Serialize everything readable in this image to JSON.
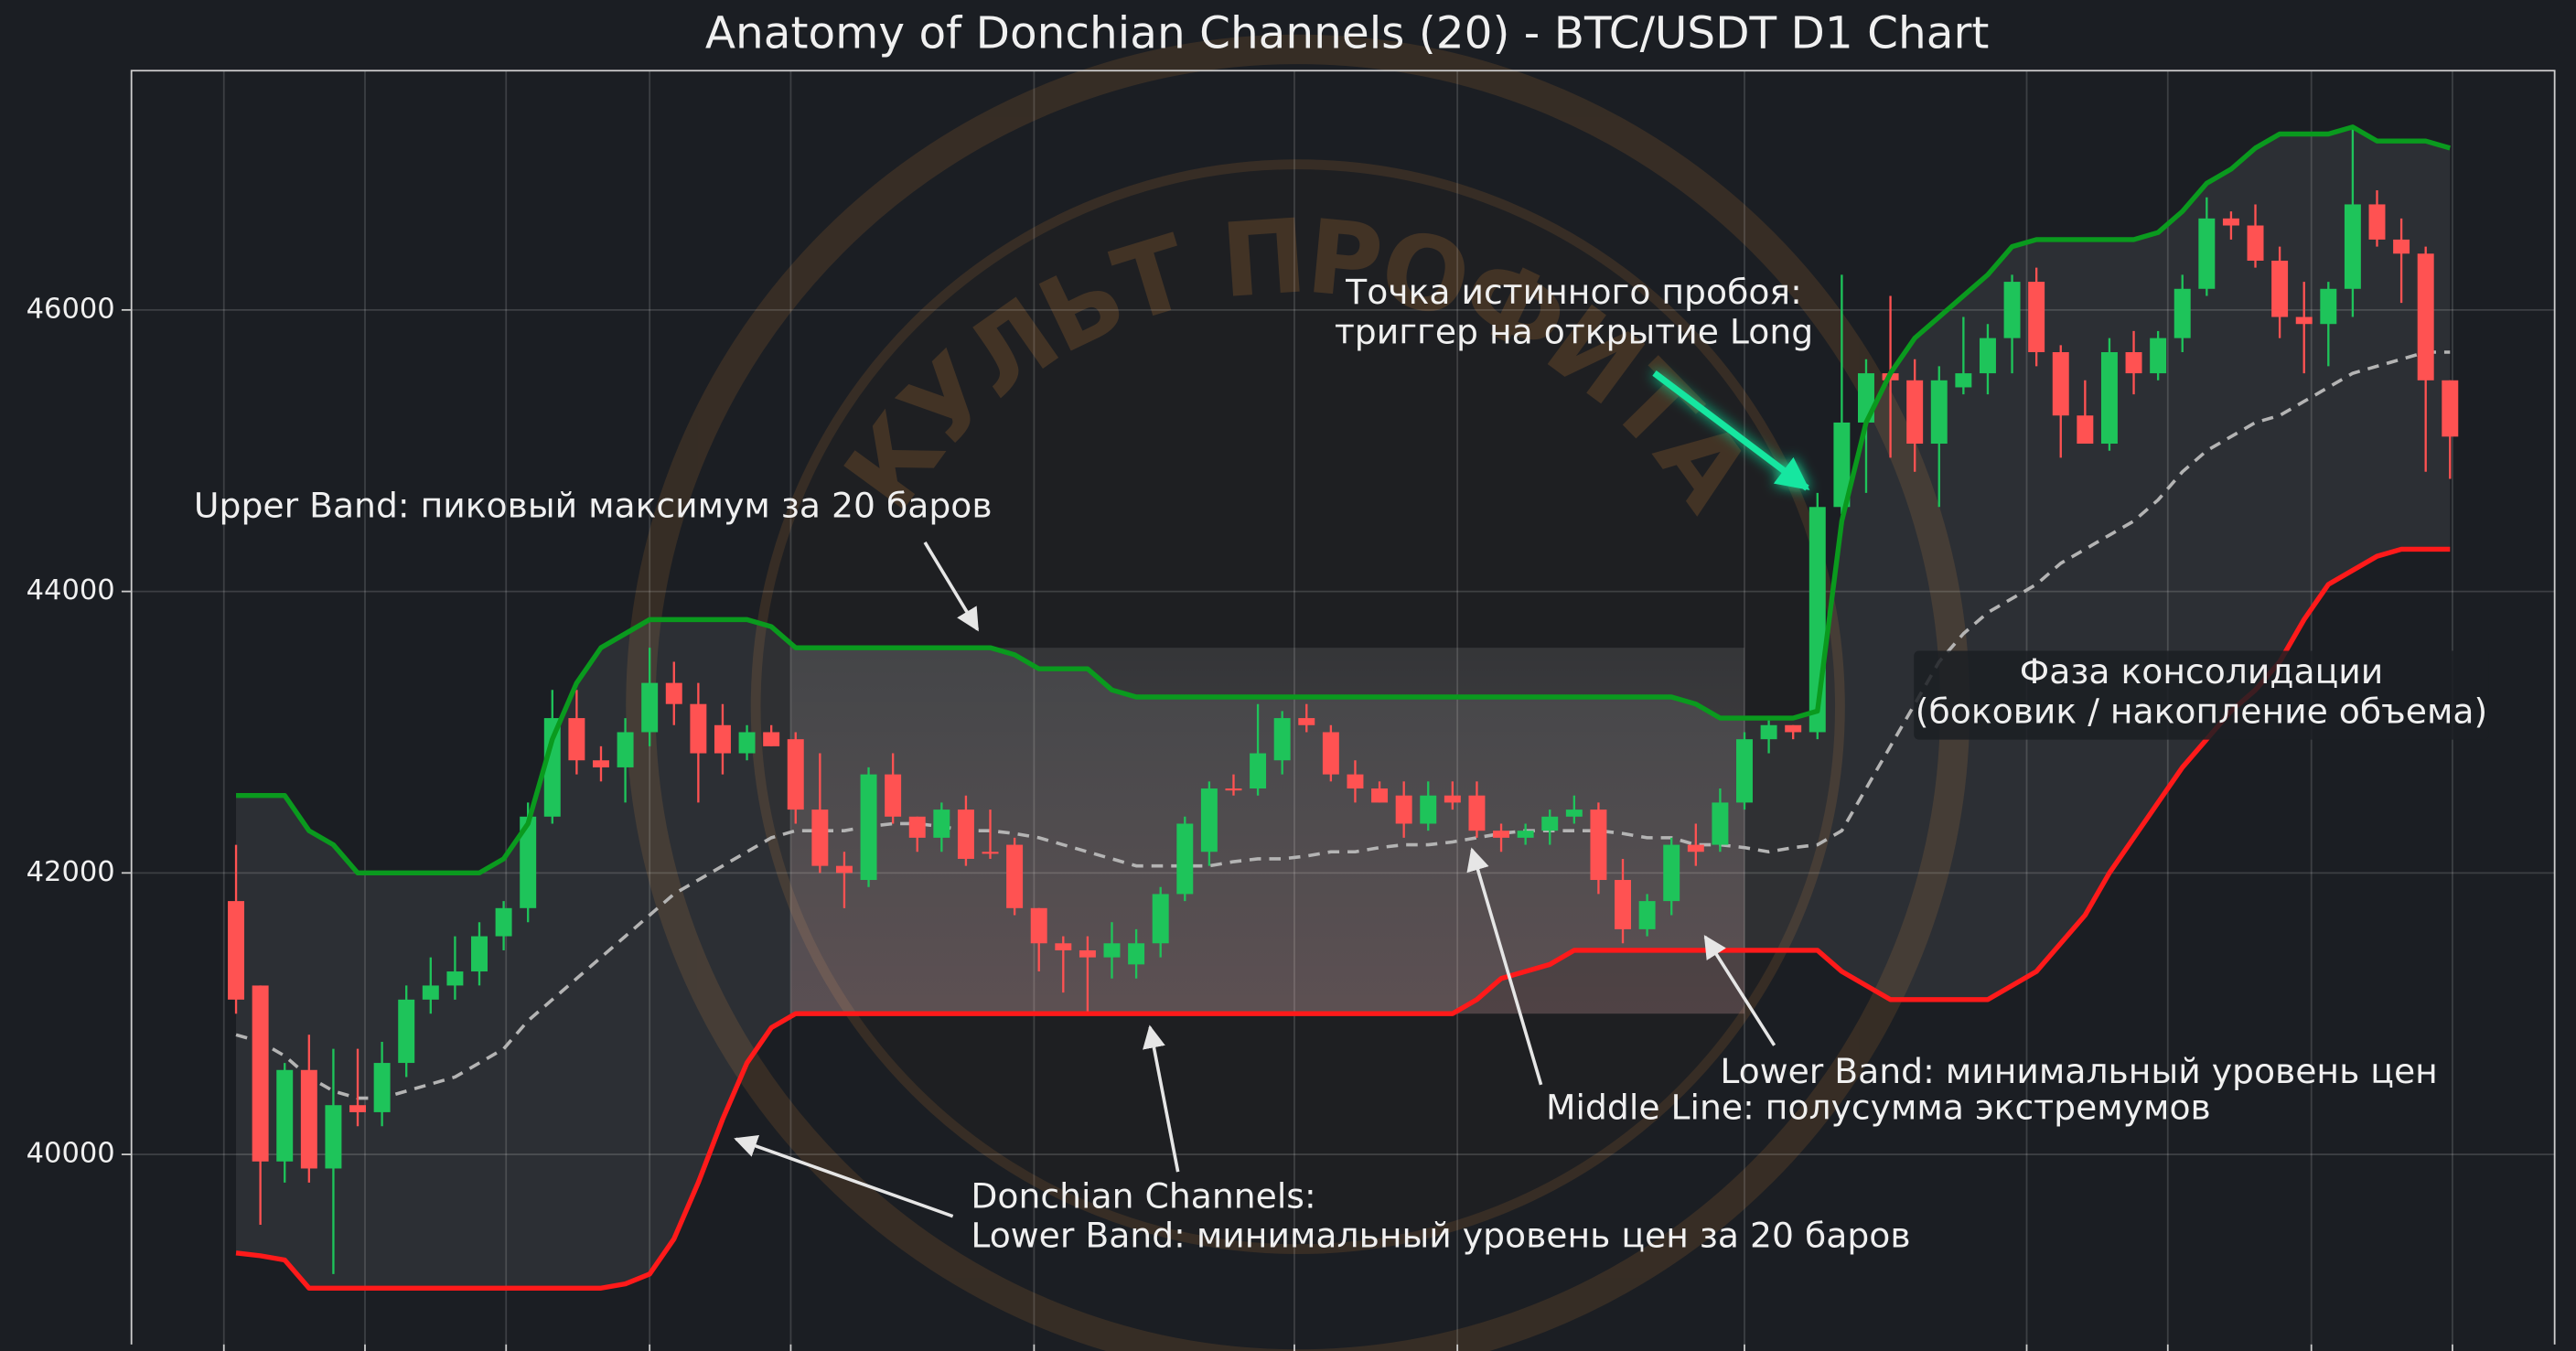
{
  "chart_data": {
    "type": "candlestick",
    "title": "Anatomy of Donchian Channels (20) - BTC/USDT D1 Chart",
    "watermark": "КУЛЬТ ПРОФИТА",
    "ylim": [
      38650,
      47700
    ],
    "yticks": [
      40000,
      42000,
      44000,
      46000
    ],
    "xlim": [
      -4.3,
      95.3
    ],
    "xticks": [
      -0.5,
      5.3,
      11.1,
      17,
      22.8,
      32.8,
      43.5,
      50.2,
      62,
      73.6,
      79.4,
      85.3,
      91.1
    ],
    "grid": true,
    "up_color": "#1ec45a",
    "down_color": "#ff5252",
    "open": [
      41800,
      41200,
      39950,
      40600,
      39900,
      40350,
      40300,
      40650,
      41100,
      41200,
      41300,
      41550,
      41750,
      42400,
      43100,
      42800,
      42750,
      43000,
      43350,
      43200,
      43050,
      42850,
      43000,
      42950,
      42450,
      42050,
      41950,
      42700,
      42400,
      42250,
      42450,
      42150,
      42200,
      41750,
      41500,
      41450,
      41400,
      41350,
      41500,
      41850,
      42150,
      42600,
      42600,
      42800,
      43100,
      43000,
      42700,
      42600,
      42550,
      42350,
      42550,
      42550,
      42300,
      42250,
      42300,
      42400,
      42450,
      41950,
      41600,
      41800,
      42200,
      42200,
      42500,
      42950,
      43050,
      43000,
      44600,
      45200,
      45550,
      45500,
      45050,
      45450,
      45550,
      45800,
      46200,
      45700,
      45250,
      45050,
      45700,
      45550,
      45800,
      46150,
      46650,
      46600,
      46350,
      45950,
      45900,
      46150,
      46750,
      46500,
      46400,
      45500
    ],
    "high": [
      42200,
      41200,
      40650,
      40850,
      40750,
      40750,
      40800,
      41200,
      41400,
      41550,
      41650,
      41800,
      42500,
      43300,
      43300,
      42900,
      43100,
      43600,
      43500,
      43350,
      43200,
      43050,
      43050,
      43000,
      42850,
      42150,
      42750,
      42850,
      42400,
      42500,
      42550,
      42450,
      42250,
      41750,
      41550,
      41550,
      41650,
      41600,
      41900,
      42400,
      42650,
      42700,
      43200,
      43150,
      43200,
      43050,
      42800,
      42650,
      42650,
      42650,
      42650,
      42650,
      42350,
      42350,
      42450,
      42550,
      42500,
      42100,
      41850,
      42250,
      42350,
      42600,
      43000,
      43100,
      43050,
      44700,
      46250,
      45650,
      46100,
      45650,
      45600,
      45950,
      45900,
      46250,
      46300,
      45750,
      45500,
      45800,
      45850,
      45850,
      46250,
      46800,
      46700,
      46750,
      46450,
      46200,
      46200,
      47300,
      46850,
      46650,
      46450,
      45500
    ],
    "low": [
      41000,
      39500,
      39800,
      39800,
      39150,
      40200,
      40200,
      40550,
      41000,
      41100,
      41200,
      41450,
      41650,
      42350,
      42700,
      42650,
      42500,
      42900,
      43050,
      42500,
      42700,
      42800,
      42900,
      42350,
      42000,
      41750,
      41900,
      42350,
      42150,
      42150,
      42050,
      42100,
      41700,
      41300,
      41150,
      41000,
      41250,
      41250,
      41400,
      41800,
      42050,
      42550,
      42550,
      42700,
      43000,
      42650,
      42500,
      42500,
      42250,
      42300,
      42450,
      42250,
      42150,
      42200,
      42200,
      42350,
      41850,
      41500,
      41550,
      41700,
      42050,
      42150,
      42450,
      42850,
      42950,
      42950,
      44550,
      44700,
      44950,
      44850,
      44600,
      45400,
      45400,
      45550,
      45600,
      44950,
      45050,
      45000,
      45400,
      45500,
      45700,
      46100,
      46500,
      46300,
      45800,
      45550,
      45600,
      45950,
      46450,
      46050,
      44850,
      44800
    ],
    "close": [
      41100,
      39950,
      40600,
      39900,
      40350,
      40300,
      40650,
      41100,
      41200,
      41300,
      41550,
      41750,
      42400,
      43100,
      42800,
      42750,
      43000,
      43350,
      43200,
      42850,
      42850,
      43000,
      42900,
      42450,
      42050,
      42000,
      42700,
      42400,
      42250,
      42450,
      42100,
      42150,
      41750,
      41500,
      41450,
      41400,
      41500,
      41500,
      41850,
      42350,
      42600,
      42600,
      42850,
      43100,
      43050,
      42700,
      42600,
      42500,
      42350,
      42550,
      42500,
      42300,
      42250,
      42300,
      42400,
      42450,
      41950,
      41600,
      41800,
      42200,
      42150,
      42500,
      42950,
      43050,
      43000,
      44600,
      45200,
      45550,
      45500,
      45050,
      45500,
      45550,
      45800,
      46200,
      45700,
      45250,
      45050,
      45700,
      45550,
      45800,
      46150,
      46650,
      46600,
      46350,
      45950,
      45900,
      46150,
      46750,
      46500,
      46400,
      45500,
      45100
    ],
    "upper_band": {
      "color": "#0a9a1e",
      "values": [
        42550,
        42550,
        42550,
        42300,
        42200,
        42000,
        42000,
        42000,
        42000,
        42000,
        42000,
        42100,
        42350,
        42950,
        43350,
        43600,
        43700,
        43800,
        43800,
        43800,
        43800,
        43800,
        43750,
        43600,
        43600,
        43600,
        43600,
        43600,
        43600,
        43600,
        43600,
        43600,
        43550,
        43450,
        43450,
        43450,
        43300,
        43250,
        43250,
        43250,
        43250,
        43250,
        43250,
        43250,
        43250,
        43250,
        43250,
        43250,
        43250,
        43250,
        43250,
        43250,
        43250,
        43250,
        43250,
        43250,
        43250,
        43250,
        43250,
        43250,
        43200,
        43100,
        43100,
        43100,
        43100,
        43150,
        44500,
        45200,
        45550,
        45800,
        45950,
        46100,
        46250,
        46450,
        46500,
        46500,
        46500,
        46500,
        46500,
        46550,
        46700,
        46900,
        47000,
        47150,
        47250,
        47250,
        47250,
        47300,
        47200,
        47200,
        47200,
        47150
      ]
    },
    "middle_line": {
      "color": "#b4b4b4",
      "values": [
        40850,
        40800,
        40700,
        40550,
        40450,
        40400,
        40400,
        40450,
        40500,
        40550,
        40650,
        40750,
        40950,
        41100,
        41250,
        41400,
        41550,
        41700,
        41850,
        41950,
        42050,
        42150,
        42250,
        42300,
        42300,
        42300,
        42330,
        42350,
        42350,
        42330,
        42300,
        42300,
        42280,
        42250,
        42200,
        42150,
        42100,
        42050,
        42050,
        42050,
        42050,
        42080,
        42100,
        42100,
        42120,
        42150,
        42150,
        42180,
        42200,
        42200,
        42220,
        42250,
        42280,
        42300,
        42300,
        42300,
        42300,
        42280,
        42250,
        42250,
        42200,
        42200,
        42180,
        42150,
        42180,
        42200,
        42300,
        42600,
        42900,
        43200,
        43500,
        43700,
        43850,
        43950,
        44050,
        44200,
        44300,
        44400,
        44500,
        44650,
        44850,
        45000,
        45100,
        45200,
        45250,
        45350,
        45450,
        45550,
        45600,
        45650,
        45700,
        45700
      ]
    },
    "lower_band": {
      "color": "#ff1a1a",
      "values": [
        39300,
        39280,
        39250,
        39050,
        39050,
        39050,
        39050,
        39050,
        39050,
        39050,
        39050,
        39050,
        39050,
        39050,
        39050,
        39050,
        39080,
        39150,
        39400,
        39800,
        40250,
        40650,
        40900,
        41000,
        41000,
        41000,
        41000,
        41000,
        41000,
        41000,
        41000,
        41000,
        41000,
        41000,
        41000,
        41000,
        41000,
        41000,
        41000,
        41000,
        41000,
        41000,
        41000,
        41000,
        41000,
        41000,
        41000,
        41000,
        41000,
        41000,
        41000,
        41100,
        41250,
        41300,
        41350,
        41450,
        41450,
        41450,
        41450,
        41450,
        41450,
        41450,
        41450,
        41450,
        41450,
        41450,
        41300,
        41200,
        41100,
        41100,
        41100,
        41100,
        41100,
        41200,
        41300,
        41500,
        41700,
        42000,
        42250,
        42500,
        42750,
        42950,
        43150,
        43300,
        43500,
        43800,
        44050,
        44150,
        44250,
        44300,
        44300,
        44300
      ]
    },
    "highlight_zone": {
      "x": [
        22.8,
        62
      ],
      "y": [
        41000,
        43600
      ]
    },
    "annotations": [
      {
        "text": [
          "Upper Band: пиковый максимум за 20 баров"
        ]
      },
      {
        "text": [
          "Точка истинного пробоя:",
          "триггер на открытие Long"
        ],
        "color": "#19e6a0"
      },
      {
        "text": [
          "Фаза консолидации",
          "(боковик / накопление объема)"
        ]
      },
      {
        "text": [
          "Lower Band: минимальный уровень цен"
        ]
      },
      {
        "text": [
          "Middle Line: полусумма экстремумов"
        ]
      },
      {
        "text": [
          "Donchian Channels:",
          "Lower Band: минимальный уровень цен за 20 баров"
        ]
      }
    ]
  }
}
